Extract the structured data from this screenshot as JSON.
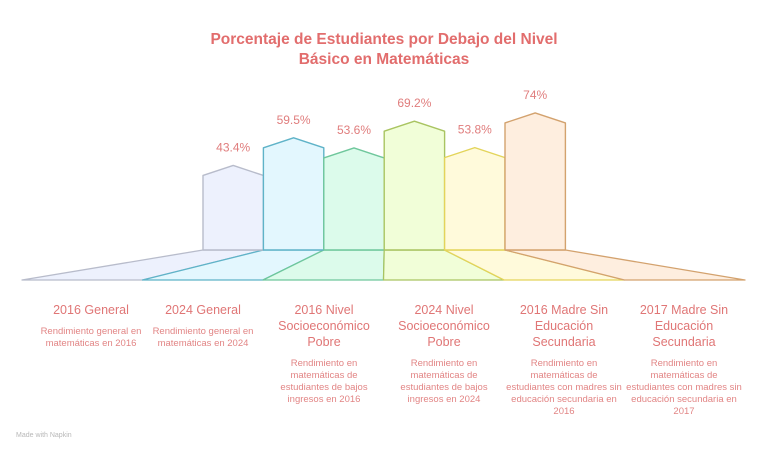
{
  "chart_data": {
    "type": "bar",
    "title": "Porcentaje de Estudiantes por Debajo del Nivel Básico en Matemáticas",
    "title_lines": [
      "Porcentaje de Estudiantes por Debajo del Nivel",
      "Básico en Matemáticas"
    ],
    "categories": [
      "2016 General",
      "2024 General",
      "2016 Nivel Socioeconómico Pobre",
      "2024 Nivel Socioeconómico Pobre",
      "2016 Madre Sin Educación Secundaria",
      "2017 Madre Sin Educación Secundaria"
    ],
    "values": [
      43.4,
      59.5,
      53.6,
      69.2,
      53.8,
      74
    ],
    "value_labels": [
      "43.4%",
      "59.5%",
      "53.6%",
      "69.2%",
      "53.8%",
      "74%"
    ],
    "descriptions": [
      "Rendimiento general en matemáticas en 2016",
      "Rendimiento general en matemáticas en 2024",
      "Rendimiento en matemáticas de estudiantes de bajos ingresos en 2016",
      "Rendimiento en matemáticas de estudiantes de bajos ingresos en 2024",
      "Rendimiento en matemáticas de estudiantes con madres sin educación secundaria en 2016",
      "Rendimiento en matemáticas de estudiantes con madres sin educación secundaria en 2017"
    ],
    "colors": {
      "fill": [
        "#edf1fd",
        "#e3f7fe",
        "#dcfbeb",
        "#f1fed8",
        "#fffadb",
        "#feeedf"
      ],
      "stroke": [
        "#b8bccb",
        "#5fb3c8",
        "#6fc79c",
        "#a9c461",
        "#e3d45a",
        "#d3a26e"
      ]
    },
    "xlabel": "",
    "ylabel": "",
    "ylim": [
      0,
      80
    ],
    "grid": false,
    "legend": "none"
  },
  "footer": {
    "text": "Made with  Napkin"
  }
}
